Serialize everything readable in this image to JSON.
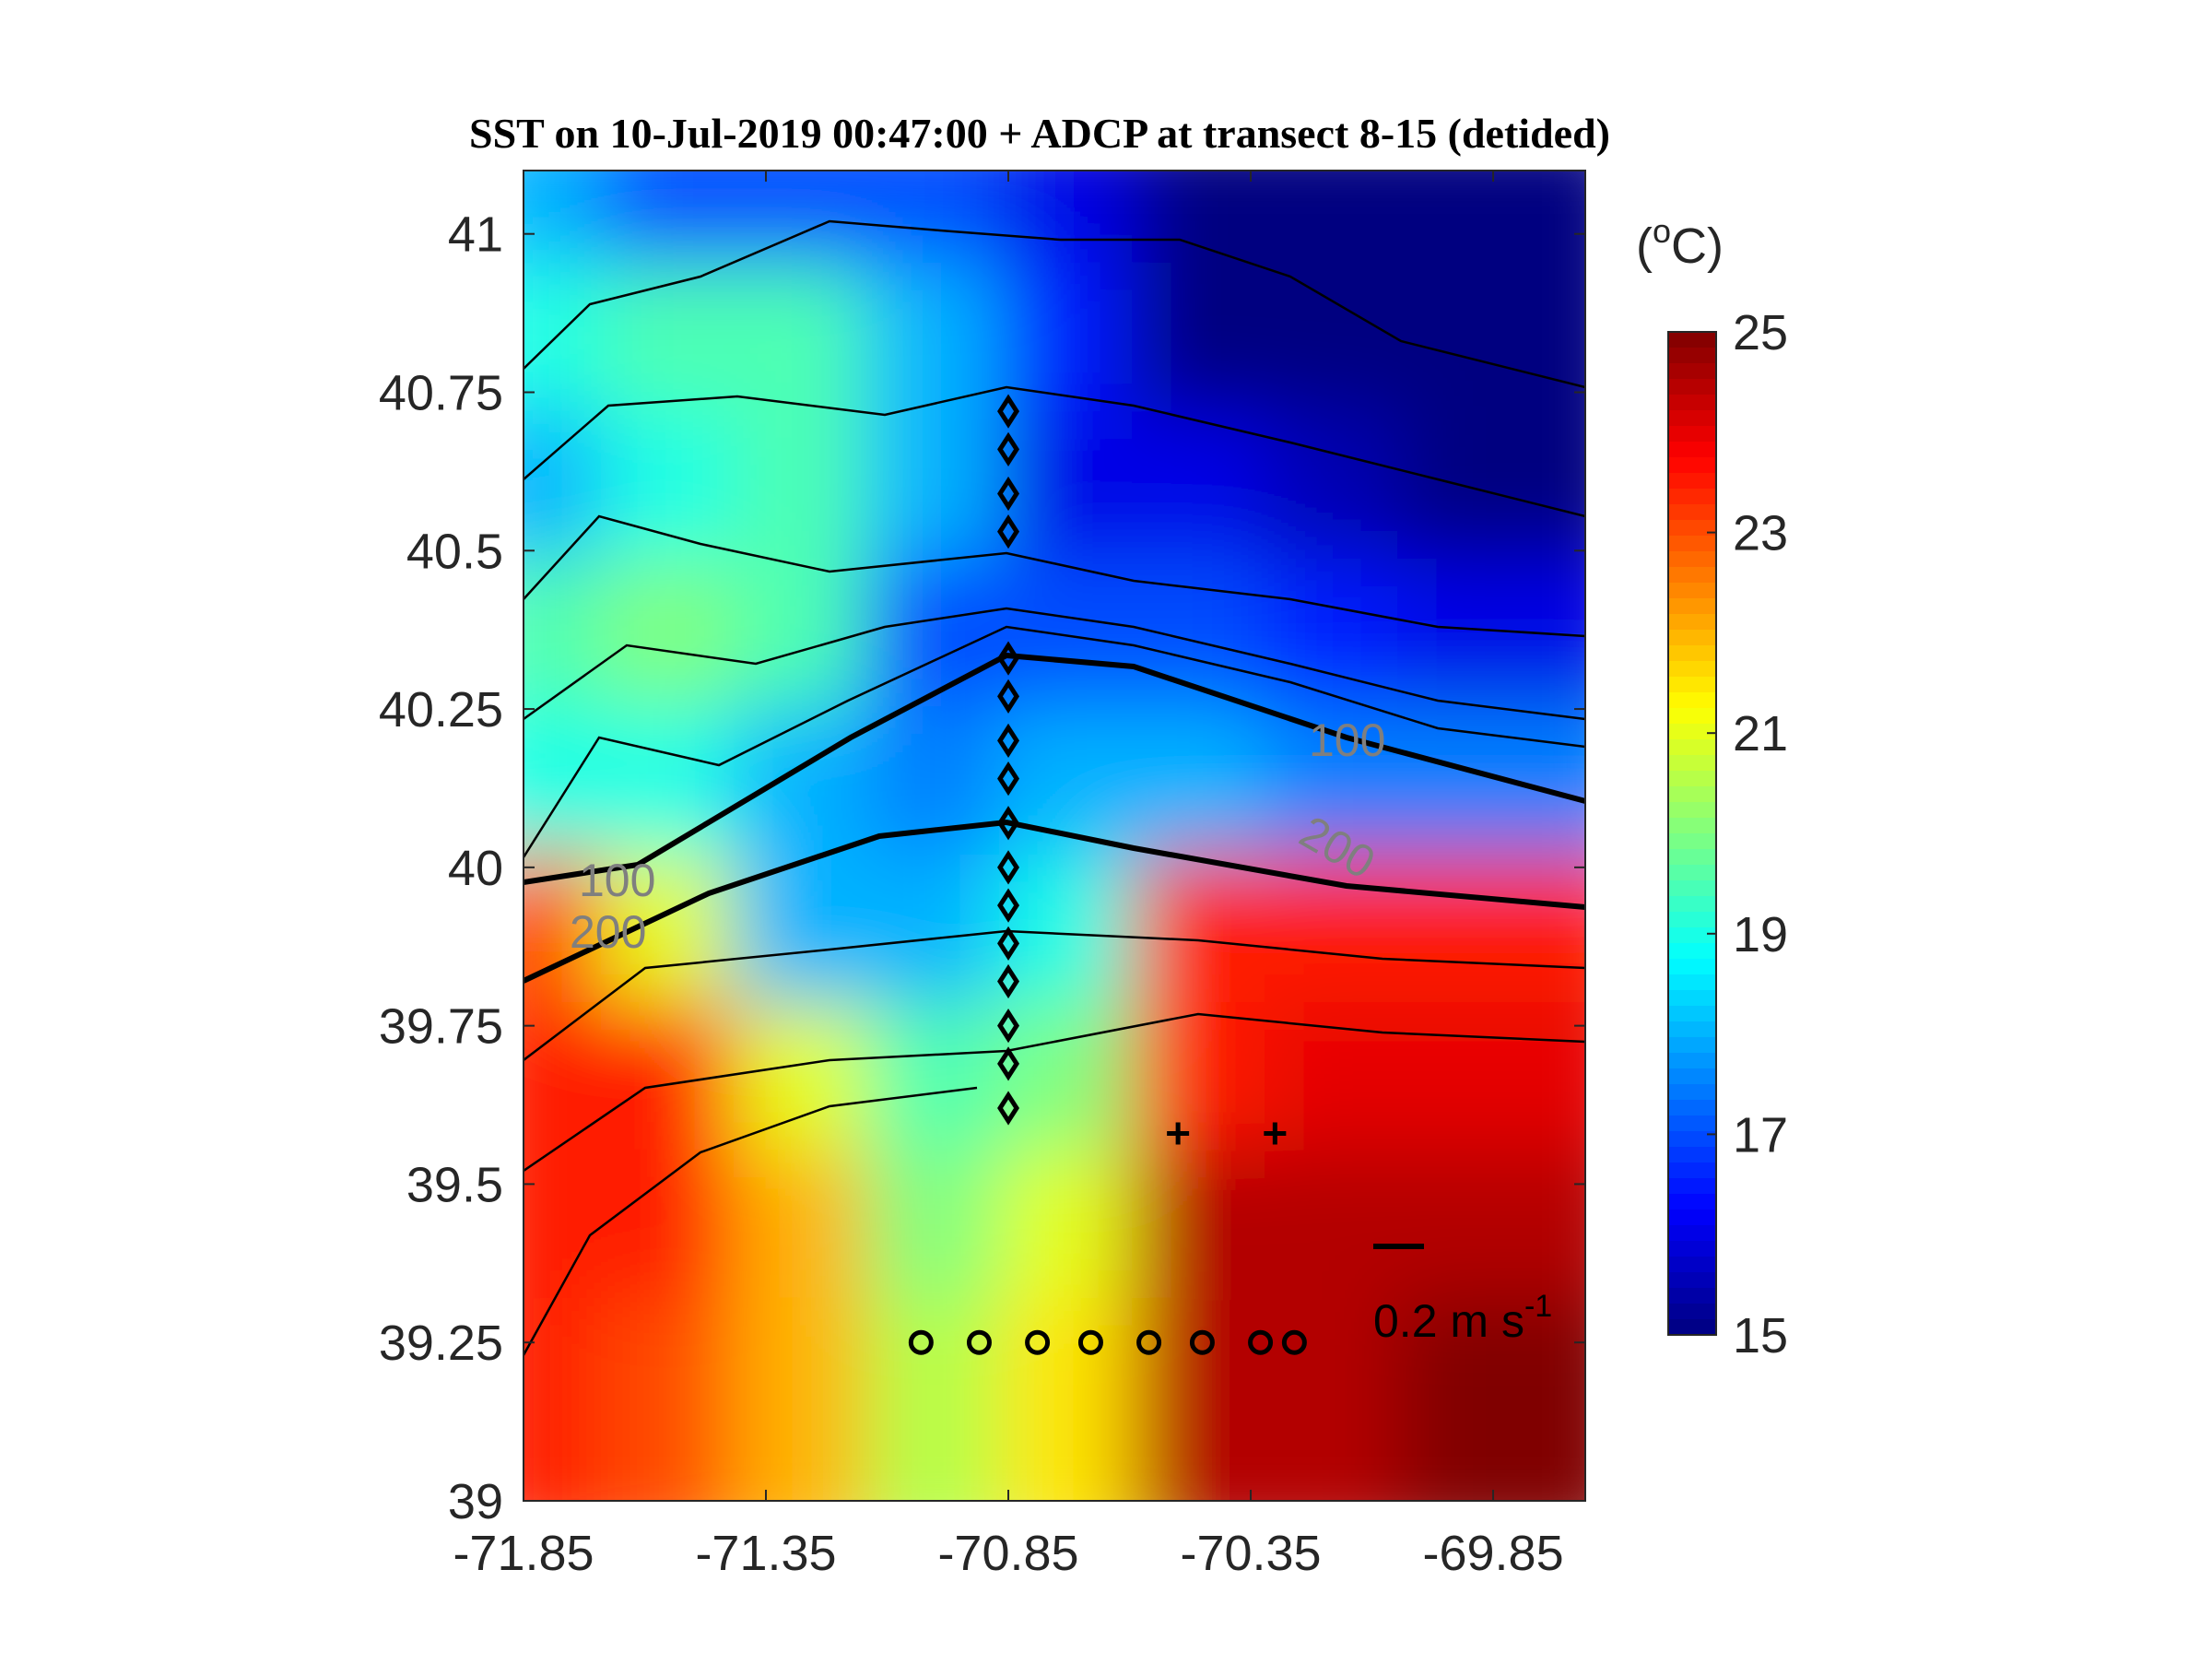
{
  "chart_data": {
    "type": "map",
    "title": "SST on 10-Jul-2019 00:47:00 + ADCP at transect 8-15 (detided)",
    "xlim": [
      -71.85,
      -69.66
    ],
    "ylim": [
      39,
      41.1
    ],
    "xticks": [
      -71.85,
      -71.35,
      -70.85,
      -70.35,
      -69.85
    ],
    "yticks": [
      39,
      39.25,
      39.5,
      39.75,
      40,
      40.25,
      40.5,
      40.75,
      41
    ],
    "clim": [
      15,
      25
    ],
    "cticks": [
      15,
      17,
      19,
      21,
      23,
      25
    ],
    "colorbar_label": [
      "(",
      "o",
      "C)"
    ],
    "sst_grid": [
      [
        18,
        17,
        17,
        17,
        16,
        15,
        15,
        15
      ],
      [
        19,
        19.5,
        19.5,
        18,
        16.5,
        15,
        15,
        15
      ],
      [
        18,
        19,
        19.5,
        18,
        16,
        16,
        15.5,
        15
      ],
      [
        19.5,
        20,
        19.5,
        17,
        17,
        17,
        16.5,
        16
      ],
      [
        19,
        19,
        18,
        17.5,
        18,
        18,
        17.5,
        17.5
      ],
      [
        23,
        21,
        18,
        18,
        19,
        23.5,
        23.5,
        23.5
      ],
      [
        23.5,
        23.5,
        21,
        19.5,
        20,
        23.5,
        24,
        24
      ],
      [
        23.5,
        23.5,
        22,
        20,
        21,
        24.5,
        24.5,
        24.5
      ],
      [
        23.5,
        23,
        22,
        20.5,
        21.5,
        24.5,
        24.5,
        25
      ]
    ],
    "contour_labels": [
      100,
      200,
      100,
      200
    ],
    "scale_label": [
      "0.2 m s",
      "-1"
    ],
    "diamond_stations": {
      "x": [
        -70.85,
        -70.85,
        -70.85,
        -70.85,
        -70.85,
        -70.85,
        -70.85,
        -70.85,
        -70.85,
        -70.85,
        -70.85,
        -70.85,
        -70.85,
        -70.85,
        -70.85,
        -70.85
      ],
      "y": [
        40.72,
        40.66,
        40.59,
        40.53,
        40.33,
        40.27,
        40.2,
        40.14,
        40.0,
        39.94,
        39.88,
        39.82,
        39.75,
        39.69,
        39.62,
        40.07
      ]
    },
    "circle_stations": {
      "x": [
        -71.03,
        -70.91,
        -70.79,
        -70.68,
        -70.56,
        -70.45,
        -70.33,
        -70.26
      ],
      "y": [
        39.25,
        39.25,
        39.25,
        39.25,
        39.25,
        39.25,
        39.25,
        39.25
      ]
    },
    "plus_stations": {
      "x": [
        -70.5,
        -70.3
      ],
      "y": [
        39.58,
        39.58
      ]
    }
  }
}
